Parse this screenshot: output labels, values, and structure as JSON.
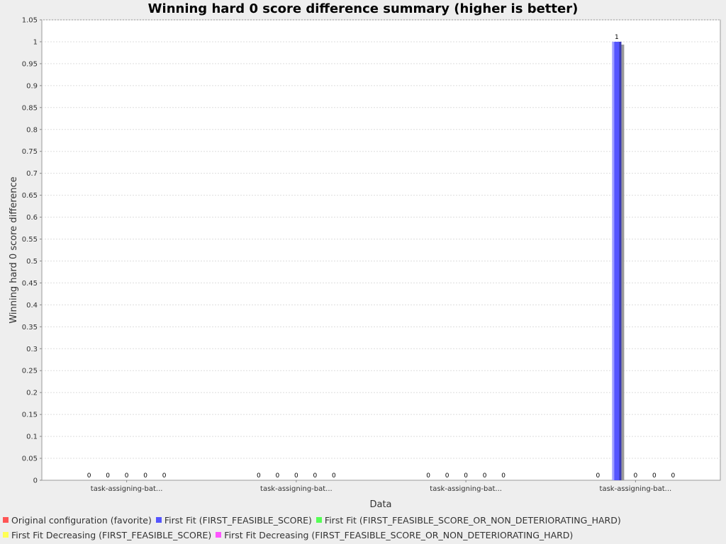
{
  "colors": {
    "background": "#eeeeee",
    "plot_background": "#ffffff",
    "grid": "#dddddd",
    "series": [
      "#ff5555",
      "#5555ff",
      "#55ff55",
      "#ffff55",
      "#ff55ff"
    ]
  },
  "chart_data": {
    "type": "bar",
    "title": "Winning hard 0 score difference summary (higher is better)",
    "xlabel": "Data",
    "ylabel": "Winning hard 0 score difference",
    "ylim": [
      0,
      1.05
    ],
    "ytick_step": 0.05,
    "yticks": [
      "0",
      "0.05",
      "0.1",
      "0.15",
      "0.2",
      "0.25",
      "0.3",
      "0.35",
      "0.4",
      "0.45",
      "0.5",
      "0.55",
      "0.6",
      "0.65",
      "0.7",
      "0.75",
      "0.8",
      "0.85",
      "0.9",
      "0.95",
      "1",
      "1.05"
    ],
    "grid": true,
    "legend_position": "bottom",
    "categories": [
      "task-assigning-bat...",
      "task-assigning-bat...",
      "task-assigning-bat...",
      "task-assigning-bat..."
    ],
    "series": [
      {
        "name": "Original configuration (favorite)",
        "values": [
          0,
          0,
          0,
          0
        ]
      },
      {
        "name": "First Fit (FIRST_FEASIBLE_SCORE)",
        "values": [
          0,
          0,
          0,
          1
        ]
      },
      {
        "name": "First Fit (FIRST_FEASIBLE_SCORE_OR_NON_DETERIORATING_HARD)",
        "values": [
          0,
          0,
          0,
          0
        ]
      },
      {
        "name": "First Fit Decreasing (FIRST_FEASIBLE_SCORE)",
        "values": [
          0,
          0,
          0,
          0
        ]
      },
      {
        "name": "First Fit Decreasing (FIRST_FEASIBLE_SCORE_OR_NON_DETERIORATING_HARD)",
        "values": [
          0,
          0,
          0,
          0
        ]
      }
    ]
  }
}
